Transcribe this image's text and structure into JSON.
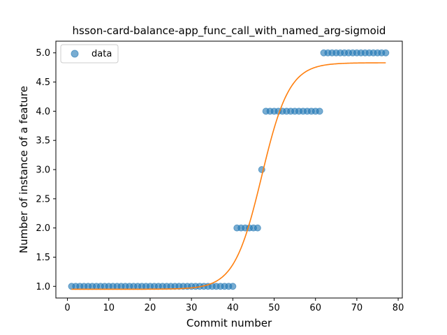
{
  "chart_data": {
    "type": "scatter",
    "title": "hsson-card-balance-app_func_call_with_named_arg-sigmoid",
    "xlabel": "Commit number",
    "ylabel": "Number of instance of a feature",
    "xlim": [
      -2.8,
      81
    ],
    "ylim": [
      0.8,
      5.2
    ],
    "xticks": [
      0,
      10,
      20,
      30,
      40,
      50,
      60,
      70,
      80
    ],
    "yticks": [
      1.0,
      1.5,
      2.0,
      2.5,
      3.0,
      3.5,
      4.0,
      4.5,
      5.0
    ],
    "xtick_labels": [
      "0",
      "10",
      "20",
      "30",
      "40",
      "50",
      "60",
      "70",
      "80"
    ],
    "ytick_labels": [
      "1.0",
      "1.5",
      "2.0",
      "2.5",
      "3.0",
      "3.5",
      "4.0",
      "4.5",
      "5.0"
    ],
    "legend": {
      "position": "top-left",
      "entries": [
        "data"
      ]
    },
    "grid": false,
    "colors": {
      "data": "#1f77b4",
      "fit": "#ff7f0e"
    },
    "series": [
      {
        "name": "data",
        "kind": "scatter",
        "x": [
          1,
          2,
          3,
          4,
          5,
          6,
          7,
          8,
          9,
          10,
          11,
          12,
          13,
          14,
          15,
          16,
          17,
          18,
          19,
          20,
          21,
          22,
          23,
          24,
          25,
          26,
          27,
          28,
          29,
          30,
          31,
          32,
          33,
          34,
          35,
          36,
          37,
          38,
          39,
          40,
          41,
          42,
          43,
          44,
          45,
          46,
          47,
          48,
          49,
          50,
          51,
          52,
          53,
          54,
          55,
          56,
          57,
          58,
          59,
          60,
          61,
          62,
          63,
          64,
          65,
          66,
          67,
          68,
          69,
          70,
          71,
          72,
          73,
          74,
          75,
          76,
          77
        ],
        "y": [
          1,
          1,
          1,
          1,
          1,
          1,
          1,
          1,
          1,
          1,
          1,
          1,
          1,
          1,
          1,
          1,
          1,
          1,
          1,
          1,
          1,
          1,
          1,
          1,
          1,
          1,
          1,
          1,
          1,
          1,
          1,
          1,
          1,
          1,
          1,
          1,
          1,
          1,
          1,
          1,
          2,
          2,
          2,
          2,
          2,
          2,
          3,
          4,
          4,
          4,
          4,
          4,
          4,
          4,
          4,
          4,
          4,
          4,
          4,
          4,
          4,
          5,
          5,
          5,
          5,
          5,
          5,
          5,
          5,
          5,
          5,
          5,
          5,
          5,
          5,
          5,
          5
        ]
      },
      {
        "name": "",
        "kind": "line",
        "sigmoid": {
          "L": 3.88,
          "x0": 47.0,
          "k": 0.3,
          "b": 0.95
        },
        "x_range": [
          1,
          77
        ]
      }
    ]
  }
}
